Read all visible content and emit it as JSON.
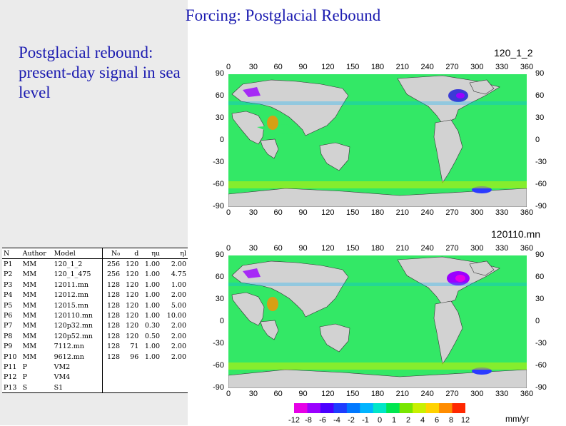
{
  "slide": {
    "title": "Forcing: Postglacial Rebound",
    "intro": "Postglacial rebound: present-day signal in sea level"
  },
  "maps": [
    {
      "label": "120_1_2"
    },
    {
      "label": "120110.mn"
    }
  ],
  "longitude_ticks": [
    "0",
    "30",
    "60",
    "90",
    "120",
    "150",
    "180",
    "210",
    "240",
    "270",
    "300",
    "330",
    "360"
  ],
  "latitude_ticks": [
    "90",
    "60",
    "30",
    "0",
    "-30",
    "-60",
    "-90"
  ],
  "table": {
    "headers": [
      "N",
      "Author",
      "Model",
      "N₀",
      "d",
      "ηu",
      "ηl"
    ],
    "rows": [
      [
        "P1",
        "MM",
        "120_1_2",
        "256",
        "120",
        "1.00",
        "2.00"
      ],
      [
        "P2",
        "MM",
        "120_1_475",
        "256",
        "120",
        "1.00",
        "4.75"
      ],
      [
        "P3",
        "MM",
        "12011.mn",
        "128",
        "120",
        "1.00",
        "1.00"
      ],
      [
        "P4",
        "MM",
        "12012.mn",
        "128",
        "120",
        "1.00",
        "2.00"
      ],
      [
        "P5",
        "MM",
        "12015.mn",
        "128",
        "120",
        "1.00",
        "5.00"
      ],
      [
        "P6",
        "MM",
        "120110.mn",
        "128",
        "120",
        "1.00",
        "10.00"
      ],
      [
        "P7",
        "MM",
        "120p32.mn",
        "128",
        "120",
        "0.30",
        "2.00"
      ],
      [
        "P8",
        "MM",
        "120p52.mn",
        "128",
        "120",
        "0.50",
        "2.00"
      ],
      [
        "P9",
        "MM",
        "7112.mn",
        "128",
        "71",
        "1.00",
        "2.00"
      ],
      [
        "P10",
        "MM",
        "9612.mn",
        "128",
        "96",
        "1.00",
        "2.00"
      ],
      [
        "P11",
        "P",
        "VM2",
        "",
        "",
        "",
        ""
      ],
      [
        "P12",
        "P",
        "VM4",
        "",
        "",
        "",
        ""
      ],
      [
        "P13",
        "S",
        "S1",
        "",
        "",
        "",
        ""
      ]
    ]
  },
  "colorbar": {
    "tick_labels": [
      "-12",
      "-8",
      "-6",
      "-4",
      "-2",
      "-1",
      "0",
      "1",
      "2",
      "4",
      "6",
      "8",
      "12"
    ],
    "colors": [
      "#e600e6",
      "#9b00ff",
      "#4b00ff",
      "#1e3cff",
      "#0078ff",
      "#00b4ff",
      "#00e6c8",
      "#00e650",
      "#78e600",
      "#c8f000",
      "#ffd200",
      "#ff8c00",
      "#ff2800"
    ],
    "units": "mm/yr"
  },
  "colors": {
    "text_blue": "#1a1ab0",
    "ocean": "#33e866",
    "land": "#d2d2d2",
    "panel_bg": "#ebebeb"
  }
}
